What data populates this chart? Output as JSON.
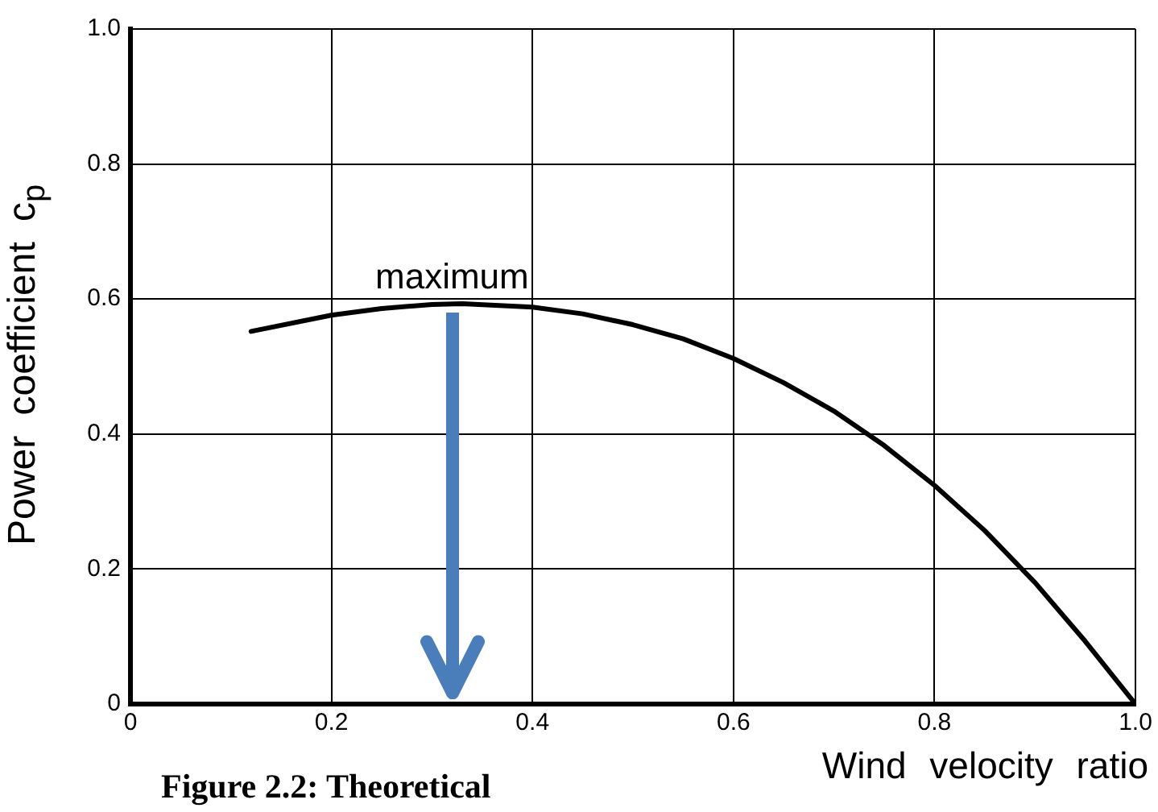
{
  "chart_data": {
    "type": "line",
    "xlabel": "Wind velocity ratio",
    "ylabel": "Power coefficient c$_{p}$",
    "x": [
      0.12,
      0.2,
      0.25,
      0.3,
      0.33,
      0.4,
      0.45,
      0.5,
      0.55,
      0.6,
      0.65,
      0.7,
      0.75,
      0.8,
      0.85,
      0.9,
      0.95,
      1.0
    ],
    "series": [
      {
        "color": "#000000",
        "values": [
          0.552,
          0.576,
          0.586,
          0.592,
          0.593,
          0.588,
          0.578,
          0.562,
          0.541,
          0.512,
          0.476,
          0.434,
          0.383,
          0.324,
          0.257,
          0.18,
          0.093,
          0
        ]
      }
    ],
    "xlim": [
      0,
      1.0
    ],
    "xticks": [
      0,
      0.2,
      0.4,
      0.6,
      0.8,
      {
        "value": 1.0,
        "label": "1.0"
      }
    ],
    "ylim": [
      0,
      1.0
    ],
    "yticks": [
      0,
      0.2,
      0.4,
      0.6,
      0.8,
      {
        "value": 1.0,
        "label": "1.0"
      }
    ],
    "grid": true,
    "legend": false,
    "marker": "none",
    "line_style": "solid",
    "annotations": [
      {
        "text": "maximum",
        "x": 0.32,
        "y": 0.59
      },
      "Figure 2.2: Theoretical"
    ]
  }
}
